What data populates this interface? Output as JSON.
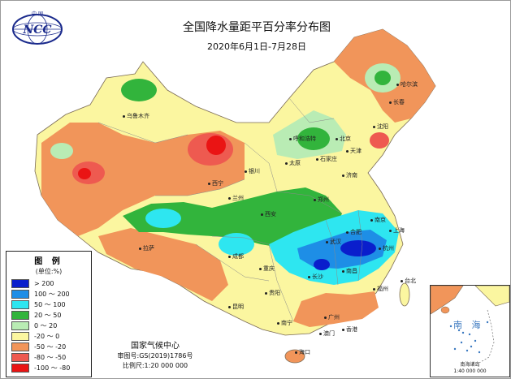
{
  "map": {
    "title": "全国降水量距平百分率分布图",
    "subtitle": "2020年6月1日-7月28日"
  },
  "logo": {
    "text": "NCC",
    "caption": "中 国"
  },
  "legend": {
    "title": "图 例",
    "unit": "(单位:%)",
    "items": [
      {
        "label": "> 200",
        "color": "#0a1ecc"
      },
      {
        "label": "100 ～ 200",
        "color": "#1e8ee6"
      },
      {
        "label": "50 ～ 100",
        "color": "#2ee6f0"
      },
      {
        "label": "20 ～ 50",
        "color": "#32b43c"
      },
      {
        "label": "0 ～ 20",
        "color": "#b9ecb4"
      },
      {
        "label": "-20 ～ 0",
        "color": "#fbf6a0"
      },
      {
        "label": "-50 ～ -20",
        "color": "#f1955a"
      },
      {
        "label": "-80 ～ -50",
        "color": "#ee5a50"
      },
      {
        "label": "-100 ～ -80",
        "color": "#ea1414"
      }
    ]
  },
  "credits": {
    "org": "国家气候中心",
    "approval": "审图号:GS(2019)1786号",
    "scale": "比例尺:1:20 000 000"
  },
  "inset": {
    "label": "南 海",
    "caption_line1": "南海诸岛",
    "caption_line2": "1:40 000 000"
  },
  "cities": [
    "乌鲁木齐",
    "哈尔滨",
    "长春",
    "沈阳",
    "北京",
    "天津",
    "石家庄",
    "太原",
    "呼和浩特",
    "银川",
    "西宁",
    "兰州",
    "西安",
    "郑州",
    "济南",
    "南京",
    "合肥",
    "上海",
    "杭州",
    "武汉",
    "长沙",
    "南昌",
    "福州",
    "台北",
    "广州",
    "南宁",
    "海口",
    "香港",
    "澳门",
    "贵阳",
    "昆明",
    "成都",
    "重庆",
    "拉萨"
  ]
}
